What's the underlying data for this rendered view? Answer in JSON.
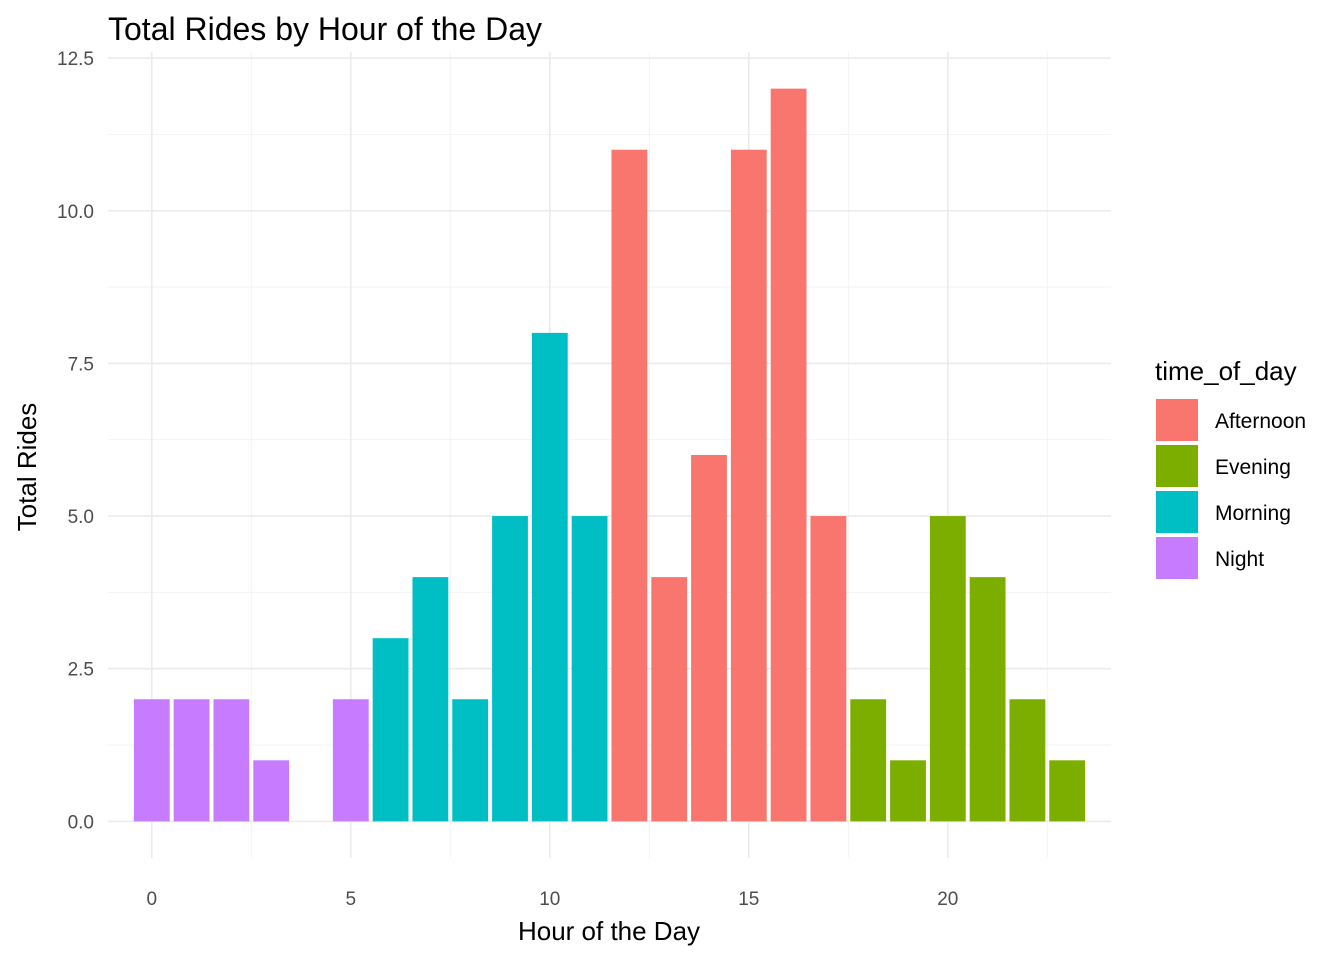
{
  "chart_data": {
    "type": "bar",
    "title": "Total Rides by Hour of the Day",
    "xlabel": "Hour of the Day",
    "ylabel": "Total Rides",
    "xlim": [
      -1.1,
      24.1
    ],
    "ylim": [
      -0.6,
      12.6
    ],
    "x_ticks": [
      0,
      5,
      10,
      15,
      20
    ],
    "y_ticks": [
      0,
      2.5,
      5,
      7.5,
      10,
      12.5
    ],
    "y_tick_labels": [
      "0.0",
      "2.5",
      "5.0",
      "7.5",
      "10.0",
      "12.5"
    ],
    "grid": true,
    "legend": {
      "title": "time_of_day",
      "position": "right",
      "entries": [
        {
          "name": "Afternoon",
          "color": "#F8766D"
        },
        {
          "name": "Evening",
          "color": "#7CAE00"
        },
        {
          "name": "Morning",
          "color": "#00BFC4"
        },
        {
          "name": "Night",
          "color": "#C77CFF"
        }
      ]
    },
    "bars": [
      {
        "hour": 0,
        "rides": 2,
        "time_of_day": "Night"
      },
      {
        "hour": 1,
        "rides": 2,
        "time_of_day": "Night"
      },
      {
        "hour": 2,
        "rides": 2,
        "time_of_day": "Night"
      },
      {
        "hour": 3,
        "rides": 1,
        "time_of_day": "Night"
      },
      {
        "hour": 5,
        "rides": 2,
        "time_of_day": "Night"
      },
      {
        "hour": 6,
        "rides": 3,
        "time_of_day": "Morning"
      },
      {
        "hour": 7,
        "rides": 4,
        "time_of_day": "Morning"
      },
      {
        "hour": 8,
        "rides": 2,
        "time_of_day": "Morning"
      },
      {
        "hour": 9,
        "rides": 5,
        "time_of_day": "Morning"
      },
      {
        "hour": 10,
        "rides": 8,
        "time_of_day": "Morning"
      },
      {
        "hour": 11,
        "rides": 5,
        "time_of_day": "Morning"
      },
      {
        "hour": 12,
        "rides": 11,
        "time_of_day": "Afternoon"
      },
      {
        "hour": 13,
        "rides": 4,
        "time_of_day": "Afternoon"
      },
      {
        "hour": 14,
        "rides": 6,
        "time_of_day": "Afternoon"
      },
      {
        "hour": 15,
        "rides": 11,
        "time_of_day": "Afternoon"
      },
      {
        "hour": 16,
        "rides": 12,
        "time_of_day": "Afternoon"
      },
      {
        "hour": 17,
        "rides": 5,
        "time_of_day": "Afternoon"
      },
      {
        "hour": 18,
        "rides": 2,
        "time_of_day": "Evening"
      },
      {
        "hour": 19,
        "rides": 1,
        "time_of_day": "Evening"
      },
      {
        "hour": 20,
        "rides": 5,
        "time_of_day": "Evening"
      },
      {
        "hour": 21,
        "rides": 4,
        "time_of_day": "Evening"
      },
      {
        "hour": 22,
        "rides": 2,
        "time_of_day": "Evening"
      },
      {
        "hour": 23,
        "rides": 1,
        "time_of_day": "Evening"
      }
    ]
  }
}
